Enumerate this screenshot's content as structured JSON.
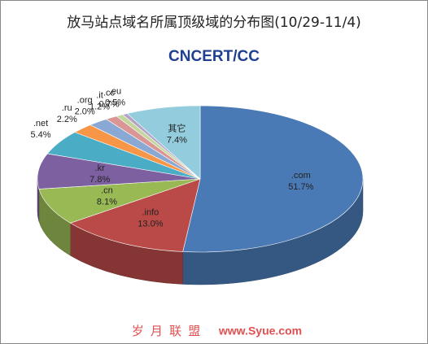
{
  "chart_data": {
    "type": "pie3d",
    "title": "放马站点域名所属顶级域的分布图(10/29-11/4)",
    "logo": "CNCERT/CC",
    "watermark_text": "岁 月 联 盟",
    "watermark_url": "www.Syue.com",
    "categories": [
      ".com",
      ".info",
      ".cn",
      ".kr",
      ".net",
      ".ru",
      ".org",
      ".it",
      ".cc",
      ".eu",
      "其它"
    ],
    "values": [
      51.7,
      13.0,
      8.1,
      7.8,
      5.4,
      2.2,
      2.0,
      1.2,
      0.7,
      0.5,
      7.4
    ],
    "value_labels": [
      "51.7%",
      "13.0%",
      "8.1%",
      "7.8%",
      "5.4%",
      "2.2%",
      "2.0%",
      "1.2%",
      "0.7%",
      "0.5%",
      "7.4%"
    ],
    "colors": [
      "#4a7ab5",
      "#b94a48",
      "#98b954",
      "#7d60a0",
      "#4bacc6",
      "#f79646",
      "#8aa8d4",
      "#d99694",
      "#c3d69b",
      "#b3a2c7",
      "#93cddd"
    ]
  }
}
